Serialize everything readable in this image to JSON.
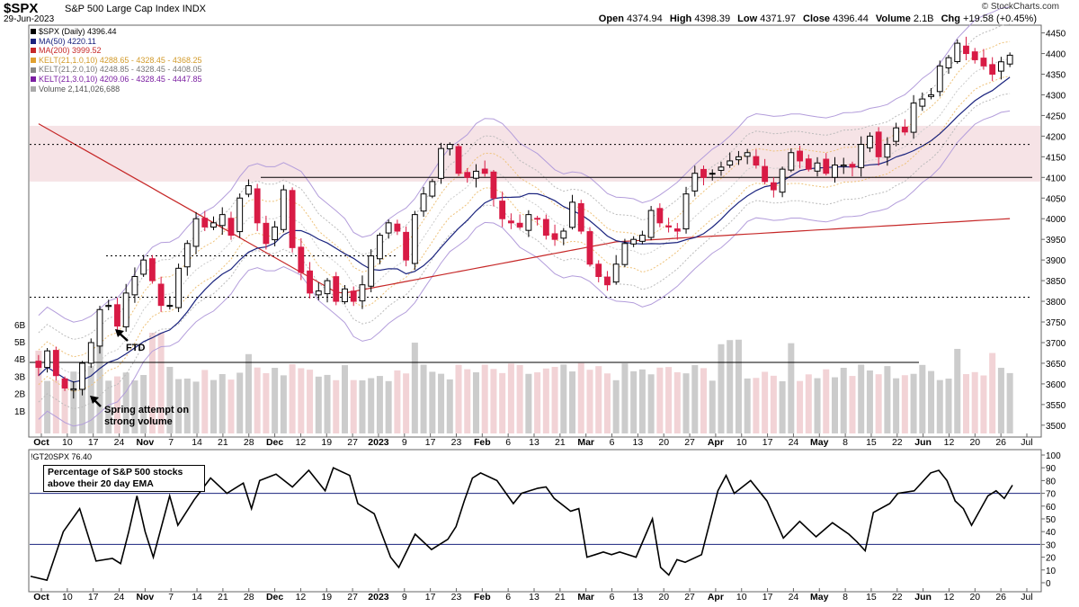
{
  "header": {
    "ticker": "$SPX",
    "name": "S&P 500 Large Cap Index",
    "exchange": "INDX",
    "date": "29-Jun-2023",
    "open_label": "Open",
    "open": "4374.94",
    "high_label": "High",
    "high": "4398.39",
    "low_label": "Low",
    "low": "4371.97",
    "close_label": "Close",
    "close": "4396.44",
    "volume_label": "Volume",
    "volume": "2.1B",
    "chg_label": "Chg",
    "chg": "+19.58 (+0.45%)",
    "logo": "© StockCharts.com"
  },
  "legend": [
    {
      "text": "$SPX (Daily) 4396.44",
      "color": "#000000"
    },
    {
      "text": "MA(50) 4220.11",
      "color": "#1a237e"
    },
    {
      "text": "MA(200) 3999.52",
      "color": "#c62828"
    },
    {
      "text": "KELT(21,1.0,10) 4288.65 - 4328.45 - 4368.25",
      "color": "#e0a030"
    },
    {
      "text": "KELT(21,2.0,10) 4248.85 - 4328.45 - 4408.05",
      "color": "#888888"
    },
    {
      "text": "KELT(21,3.0,10) 4209.06 - 4328.45 - 4447.85",
      "color": "#7b1fa2"
    },
    {
      "text": "Volume 2,141,026,688",
      "color": "#888888"
    }
  ],
  "annotations": {
    "ftd": "FTD",
    "spring_line1": "Spring attempt on",
    "spring_line2": "strong volume"
  },
  "indicator": {
    "label": "!GT20SPX 76.40",
    "box_line1": "Percentage of S&P 500 stocks",
    "box_line2": "above their 20 day EMA"
  },
  "colors": {
    "up_candle": "#000000",
    "down_candle": "#d81b45",
    "ma50": "#1a237e",
    "ma200": "#c62828",
    "kelt3": "#b39ddb",
    "resistance_zone": "#f6e3e6",
    "volume_up": "#cccccc",
    "volume_down": "#f2d3d6"
  },
  "chart_data": [
    {
      "type": "candlestick",
      "title": "$SPX (Daily)",
      "ylim": [
        3480,
        4460
      ],
      "yticks": [
        3500,
        3550,
        3600,
        3650,
        3700,
        3750,
        3800,
        3850,
        3900,
        3950,
        4000,
        4050,
        4100,
        4150,
        4200,
        4250,
        4300,
        4350,
        4400,
        4450
      ],
      "volume_ticks": [
        "1B",
        "2B",
        "3B",
        "4B",
        "5B",
        "6B"
      ],
      "x_labels": [
        "Oct",
        "10",
        "17",
        "24",
        "Nov",
        "7",
        "14",
        "21",
        "28",
        "Dec",
        "12",
        "19",
        "27",
        "2023",
        "9",
        "17",
        "23",
        "Feb",
        "6",
        "13",
        "21",
        "Mar",
        "6",
        "13",
        "20",
        "27",
        "Apr",
        "10",
        "17",
        "24",
        "May",
        "8",
        "15",
        "22",
        "Jun",
        "12",
        "20",
        "26",
        "Jul"
      ],
      "bold_labels": [
        "Oct",
        "Nov",
        "Dec",
        "2023",
        "Feb",
        "Mar",
        "Apr",
        "May",
        "Jun"
      ],
      "horizontal_levels": [
        {
          "value": 4180,
          "style": "dotted"
        },
        {
          "value": 4100,
          "style": "solid"
        },
        {
          "value": 3910,
          "style": "dotted"
        },
        {
          "value": 3810,
          "style": "dotted"
        }
      ],
      "resistance_zone": [
        4090,
        4225
      ],
      "close_anchors": [
        [
          0,
          3640
        ],
        [
          1,
          3680
        ],
        [
          2,
          3620
        ],
        [
          3,
          3590
        ],
        [
          4,
          3588
        ],
        [
          5,
          3650
        ],
        [
          6,
          3700
        ],
        [
          7,
          3780
        ],
        [
          8,
          3790
        ],
        [
          9,
          3740
        ],
        [
          10,
          3820
        ],
        [
          11,
          3860
        ],
        [
          12,
          3900
        ],
        [
          13,
          3850
        ],
        [
          14,
          3790
        ],
        [
          15,
          3790
        ],
        [
          16,
          3880
        ],
        [
          17,
          3940
        ],
        [
          18,
          4000
        ],
        [
          19,
          3980
        ],
        [
          20,
          3990
        ],
        [
          21,
          4010
        ],
        [
          22,
          3960
        ],
        [
          23,
          4050
        ],
        [
          24,
          4080
        ],
        [
          25,
          3990
        ],
        [
          26,
          3940
        ],
        [
          27,
          3980
        ],
        [
          28,
          4070
        ],
        [
          29,
          3930
        ],
        [
          30,
          3870
        ],
        [
          31,
          3820
        ],
        [
          32,
          3825
        ],
        [
          33,
          3850
        ],
        [
          34,
          3800
        ],
        [
          35,
          3830
        ],
        [
          36,
          3800
        ],
        [
          37,
          3840
        ],
        [
          38,
          3910
        ],
        [
          39,
          3960
        ],
        [
          40,
          3990
        ],
        [
          41,
          3970
        ],
        [
          42,
          3900
        ],
        [
          43,
          4010
        ],
        [
          44,
          4060
        ],
        [
          45,
          4090
        ],
        [
          46,
          4170
        ],
        [
          47,
          4180
        ],
        [
          48,
          4110
        ],
        [
          49,
          4100
        ],
        [
          50,
          4115
        ],
        [
          51,
          4110
        ],
        [
          52,
          4050
        ],
        [
          53,
          4000
        ],
        [
          54,
          3990
        ],
        [
          55,
          3980
        ],
        [
          56,
          4010
        ],
        [
          57,
          4000
        ],
        [
          58,
          3960
        ],
        [
          59,
          3950
        ],
        [
          60,
          3970
        ],
        [
          61,
          4040
        ],
        [
          62,
          3970
        ],
        [
          63,
          3890
        ],
        [
          64,
          3860
        ],
        [
          65,
          3840
        ],
        [
          66,
          3890
        ],
        [
          67,
          3940
        ],
        [
          68,
          3950
        ],
        [
          69,
          3960
        ],
        [
          70,
          4020
        ],
        [
          71,
          3990
        ],
        [
          72,
          3980
        ],
        [
          73,
          3970
        ],
        [
          74,
          4060
        ],
        [
          75,
          4110
        ],
        [
          76,
          4100
        ],
        [
          77,
          4110
        ],
        [
          78,
          4125
        ],
        [
          79,
          4140
        ],
        [
          80,
          4150
        ],
        [
          81,
          4160
        ],
        [
          82,
          4130
        ],
        [
          83,
          4090
        ],
        [
          84,
          4070
        ],
        [
          85,
          4120
        ],
        [
          86,
          4160
        ],
        [
          87,
          4140
        ],
        [
          88,
          4120
        ],
        [
          89,
          4135
        ],
        [
          90,
          4110
        ],
        [
          91,
          4130
        ],
        [
          92,
          4130
        ],
        [
          93,
          4125
        ],
        [
          94,
          4180
        ],
        [
          95,
          4200
        ],
        [
          96,
          4150
        ],
        [
          97,
          4180
        ],
        [
          98,
          4220
        ],
        [
          99,
          4210
        ],
        [
          100,
          4280
        ],
        [
          101,
          4290
        ],
        [
          102,
          4300
        ],
        [
          103,
          4370
        ],
        [
          104,
          4390
        ],
        [
          105,
          4425
        ],
        [
          106,
          4400
        ],
        [
          107,
          4385
        ],
        [
          108,
          4370
        ],
        [
          109,
          4350
        ],
        [
          110,
          4380
        ],
        [
          111,
          4396
        ]
      ]
    },
    {
      "type": "line",
      "title": "!GT20SPX",
      "ylim": [
        0,
        100
      ],
      "yticks": [
        0,
        10,
        20,
        30,
        40,
        50,
        60,
        70,
        80,
        90,
        100
      ],
      "reference_lines": [
        30,
        70
      ],
      "points": [
        [
          0,
          5
        ],
        [
          2,
          2
        ],
        [
          4,
          40
        ],
        [
          6,
          58
        ],
        [
          8,
          17
        ],
        [
          10,
          19
        ],
        [
          11,
          15
        ],
        [
          12,
          40
        ],
        [
          13,
          68
        ],
        [
          14,
          40
        ],
        [
          15,
          20
        ],
        [
          17,
          68
        ],
        [
          18,
          45
        ],
        [
          20,
          65
        ],
        [
          22,
          82
        ],
        [
          24,
          70
        ],
        [
          26,
          78
        ],
        [
          27,
          58
        ],
        [
          28,
          80
        ],
        [
          30,
          85
        ],
        [
          32,
          75
        ],
        [
          34,
          88
        ],
        [
          36,
          72
        ],
        [
          37,
          90
        ],
        [
          39,
          84
        ],
        [
          40,
          62
        ],
        [
          42,
          54
        ],
        [
          44,
          20
        ],
        [
          45,
          12
        ],
        [
          47,
          38
        ],
        [
          49,
          26
        ],
        [
          51,
          34
        ],
        [
          52,
          44
        ],
        [
          53,
          64
        ],
        [
          54,
          82
        ],
        [
          55,
          86
        ],
        [
          57,
          80
        ],
        [
          59,
          62
        ],
        [
          60,
          70
        ],
        [
          62,
          74
        ],
        [
          63,
          75
        ],
        [
          64,
          66
        ],
        [
          66,
          56
        ],
        [
          67,
          58
        ],
        [
          68,
          20
        ],
        [
          69,
          22
        ],
        [
          70,
          24
        ],
        [
          71,
          22
        ],
        [
          72,
          24
        ],
        [
          74,
          20
        ],
        [
          76,
          50
        ],
        [
          77,
          12
        ],
        [
          78,
          6
        ],
        [
          79,
          18
        ],
        [
          80,
          16
        ],
        [
          82,
          22
        ],
        [
          84,
          72
        ],
        [
          85,
          84
        ],
        [
          86,
          70
        ],
        [
          88,
          80
        ],
        [
          90,
          64
        ],
        [
          92,
          35
        ],
        [
          94,
          48
        ],
        [
          96,
          36
        ],
        [
          98,
          47
        ],
        [
          100,
          38
        ],
        [
          101,
          32
        ],
        [
          102,
          25
        ],
        [
          103,
          55
        ],
        [
          105,
          62
        ],
        [
          106,
          70
        ],
        [
          108,
          72
        ],
        [
          110,
          86
        ],
        [
          111,
          88
        ],
        [
          112,
          80
        ],
        [
          113,
          64
        ],
        [
          114,
          58
        ],
        [
          115,
          45
        ],
        [
          117,
          68
        ],
        [
          118,
          72
        ],
        [
          119,
          66
        ],
        [
          120,
          76.4
        ]
      ]
    }
  ]
}
